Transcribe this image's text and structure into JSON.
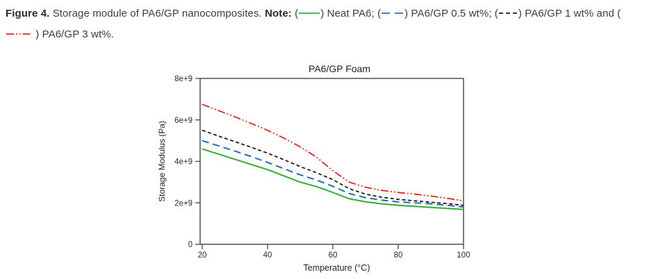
{
  "figure": {
    "caption_segments": [
      {
        "t": "bold",
        "text": "Figure 4."
      },
      {
        "t": "text",
        "text": " Storage module of PA6/GP nanocomposites. "
      },
      {
        "t": "bold",
        "text": "Note:"
      },
      {
        "t": "text",
        "text": " ("
      },
      {
        "t": "swatch",
        "style": "solid",
        "color": "#39b039",
        "name": "neat-pa6-line-symbol"
      },
      {
        "t": "text",
        "text": ") Neat PA6; ("
      },
      {
        "t": "swatch",
        "style": "long-dash",
        "color": "#2e6fbf",
        "name": "pa6-gp-05wt-line-symbol"
      },
      {
        "t": "text",
        "text": ") PA6/GP 0.5 wt%; ("
      },
      {
        "t": "swatch",
        "style": "short-dash",
        "color": "#1f1f1f",
        "name": "pa6-gp-1wt-line-symbol"
      },
      {
        "t": "text",
        "text": ") PA6/GP 1 wt% and ("
      },
      {
        "t": "swatch",
        "style": "dash-dot-dot",
        "color": "#e5231f",
        "name": "pa6-gp-3wt-line-symbol"
      },
      {
        "t": "text",
        "text": " ) PA6/GP 3 wt%."
      }
    ]
  },
  "chart_data": {
    "type": "line",
    "title": "PA6/GP Foam",
    "xlabel": "Temperature (°C)",
    "ylabel": "Storage Modulus (Pa)",
    "xlim": [
      20,
      100
    ],
    "ylim": [
      0,
      8000000000.0
    ],
    "xticks": [
      20,
      40,
      60,
      80,
      100
    ],
    "xtick_labels": [
      "20",
      "40",
      "60",
      "80",
      "100"
    ],
    "yticks": [
      0,
      2000000000.0,
      4000000000.0,
      6000000000.0,
      8000000000.0
    ],
    "ytick_labels": [
      "0",
      "2e+9",
      "4e+9",
      "6e+9",
      "8e+9"
    ],
    "grid": false,
    "legend_position": "none (legend given in figure caption)",
    "x": [
      20,
      25,
      30,
      35,
      40,
      45,
      50,
      55,
      60,
      65,
      70,
      75,
      80,
      85,
      90,
      95,
      100
    ],
    "series": [
      {
        "name": "Neat PA6",
        "color": "#39b039",
        "dash": "solid",
        "values": [
          4600000000.0,
          4350000000.0,
          4100000000.0,
          3850000000.0,
          3600000000.0,
          3300000000.0,
          3000000000.0,
          2780000000.0,
          2500000000.0,
          2200000000.0,
          2050000000.0,
          1950000000.0,
          1880000000.0,
          1830000000.0,
          1780000000.0,
          1730000000.0,
          1680000000.0
        ]
      },
      {
        "name": "PA6/GP 0.5 wt%",
        "color": "#2e6fbf",
        "dash": "long-dash",
        "values": [
          5000000000.0,
          4750000000.0,
          4500000000.0,
          4230000000.0,
          3950000000.0,
          3650000000.0,
          3350000000.0,
          3100000000.0,
          2800000000.0,
          2450000000.0,
          2250000000.0,
          2130000000.0,
          2050000000.0,
          2000000000.0,
          1950000000.0,
          1880000000.0,
          1800000000.0
        ]
      },
      {
        "name": "PA6/GP 1 wt%",
        "color": "#1f1f1f",
        "dash": "short-dash",
        "values": [
          5500000000.0,
          5220000000.0,
          4950000000.0,
          4680000000.0,
          4400000000.0,
          4080000000.0,
          3750000000.0,
          3450000000.0,
          3120000000.0,
          2680000000.0,
          2420000000.0,
          2270000000.0,
          2170000000.0,
          2100000000.0,
          2030000000.0,
          1960000000.0,
          1880000000.0
        ]
      },
      {
        "name": "PA6/GP 3 wt%",
        "color": "#e5231f",
        "dash": "dash-dot-dot",
        "values": [
          6750000000.0,
          6450000000.0,
          6150000000.0,
          5830000000.0,
          5500000000.0,
          5120000000.0,
          4700000000.0,
          4200000000.0,
          3550000000.0,
          3000000000.0,
          2750000000.0,
          2600000000.0,
          2500000000.0,
          2420000000.0,
          2330000000.0,
          2220000000.0,
          2100000000.0
        ]
      }
    ],
    "frame_color": "#454545"
  }
}
